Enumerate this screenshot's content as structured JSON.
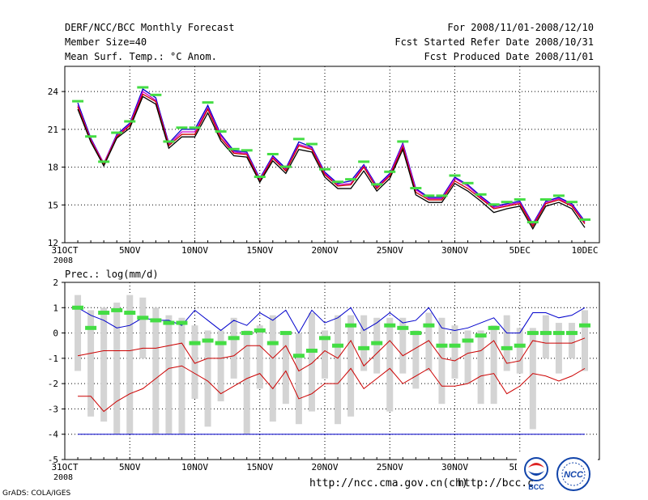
{
  "header": {
    "title": "DERF/NCC/BCC Monthly Forecast",
    "member_size": "Member Size=40",
    "variable1": "Mean Surf. Temp.: °C Anom.",
    "period": "For 2008/11/01-2008/12/10",
    "started": "Fcst Started Refer Date 2008/10/31",
    "produced": "Fcst Produced Date 2008/11/01"
  },
  "footer": {
    "url1": "http://ncc.cma.gov.cn(ch)",
    "url2": "http://bcc.c",
    "grads": "GrADS: COLA/IGES",
    "logo1_text": "BCC",
    "logo2_text": "NCC"
  },
  "colors": {
    "blue": "#0000cc",
    "red": "#cc0000",
    "magenta": "#cc00cc",
    "green": "#44dd44",
    "gray": "#d4d4d4",
    "grid": "#000000"
  },
  "chart_data": [
    {
      "type": "line",
      "title": "Mean Surf. Temp.: °C Anom.",
      "ylim": [
        12,
        26
      ],
      "yticks": [
        12,
        15,
        18,
        21,
        24
      ],
      "xticks": [
        {
          "d": 0,
          "label": "31OCT",
          "sub": "2008"
        },
        {
          "d": 5,
          "label": "5NOV"
        },
        {
          "d": 10,
          "label": "10NOV"
        },
        {
          "d": 15,
          "label": "15NOV"
        },
        {
          "d": 20,
          "label": "20NOV"
        },
        {
          "d": 25,
          "label": "25NOV"
        },
        {
          "d": 30,
          "label": "30NOV"
        },
        {
          "d": 35,
          "label": "5DEC"
        },
        {
          "d": 40,
          "label": "10DEC"
        }
      ],
      "x": [
        1,
        2,
        3,
        4,
        5,
        6,
        7,
        8,
        9,
        10,
        11,
        12,
        13,
        14,
        15,
        16,
        17,
        18,
        19,
        20,
        21,
        22,
        23,
        24,
        25,
        26,
        27,
        28,
        29,
        30,
        31,
        32,
        33,
        34,
        35,
        36,
        37,
        38,
        39,
        40
      ],
      "series": [
        {
          "name": "observed",
          "values": [
            23.2,
            20.4,
            18.4,
            20.7,
            21.6,
            24.3,
            23.7,
            20.0,
            21.1,
            21.1,
            23.1,
            20.8,
            19.4,
            19.3,
            17.2,
            19.0,
            18.0,
            20.2,
            19.8,
            17.8,
            16.8,
            17.0,
            18.4,
            16.6,
            17.6,
            20.0,
            16.3,
            15.7,
            15.7,
            17.3,
            16.7,
            15.8,
            15.0,
            15.2,
            15.4,
            13.6,
            15.4,
            15.7,
            15.2,
            13.8
          ]
        },
        {
          "name": "ensemble-max",
          "values": [
            23.1,
            20.3,
            18.3,
            20.6,
            21.5,
            24.2,
            23.5,
            19.9,
            21.0,
            21.0,
            22.9,
            20.6,
            19.3,
            19.2,
            17.1,
            18.9,
            17.9,
            20.0,
            19.6,
            17.6,
            16.7,
            16.9,
            18.2,
            16.5,
            17.5,
            19.9,
            16.3,
            15.6,
            15.6,
            17.2,
            16.6,
            15.7,
            14.9,
            15.1,
            15.3,
            13.5,
            15.3,
            15.6,
            15.1,
            13.7
          ]
        },
        {
          "name": "ensemble-mean",
          "values": [
            22.9,
            20.2,
            18.3,
            20.5,
            21.4,
            24.0,
            23.3,
            19.8,
            20.8,
            20.8,
            22.7,
            20.5,
            19.2,
            19.1,
            17.0,
            18.8,
            17.8,
            19.8,
            19.5,
            17.5,
            16.6,
            16.7,
            18.1,
            16.4,
            17.4,
            19.8,
            16.2,
            15.5,
            15.5,
            17.1,
            16.5,
            15.6,
            14.8,
            15.0,
            15.2,
            13.4,
            15.2,
            15.5,
            15.0,
            13.6
          ]
        },
        {
          "name": "ensemble-p25",
          "values": [
            22.8,
            20.1,
            18.2,
            20.4,
            21.3,
            23.8,
            23.2,
            19.7,
            20.6,
            20.6,
            22.6,
            20.3,
            19.1,
            19.0,
            16.9,
            18.7,
            17.7,
            19.7,
            19.4,
            17.4,
            16.5,
            16.6,
            18.0,
            16.3,
            17.3,
            19.6,
            16.0,
            15.4,
            15.4,
            16.9,
            16.3,
            15.5,
            14.7,
            14.9,
            15.1,
            13.3,
            15.1,
            15.4,
            14.9,
            13.5
          ]
        },
        {
          "name": "ensemble-min",
          "values": [
            22.6,
            20.0,
            18.1,
            20.3,
            21.1,
            23.6,
            23.0,
            19.5,
            20.4,
            20.4,
            22.3,
            20.1,
            18.9,
            18.8,
            16.8,
            18.5,
            17.5,
            19.4,
            19.2,
            17.2,
            16.3,
            16.3,
            17.7,
            16.1,
            17.1,
            19.4,
            15.8,
            15.2,
            15.2,
            16.7,
            16.1,
            15.3,
            14.4,
            14.7,
            14.9,
            13.1,
            14.9,
            15.2,
            14.7,
            13.2
          ]
        }
      ]
    },
    {
      "type": "bar",
      "title": "Prec.: log(mm/d)",
      "ylim": [
        -5,
        2
      ],
      "yticks": [
        -5,
        -4,
        -3,
        -2,
        -1,
        0,
        1,
        2
      ],
      "x": [
        1,
        2,
        3,
        4,
        5,
        6,
        7,
        8,
        9,
        10,
        11,
        12,
        13,
        14,
        15,
        16,
        17,
        18,
        19,
        20,
        21,
        22,
        23,
        24,
        25,
        26,
        27,
        28,
        29,
        30,
        31,
        32,
        33,
        34,
        35,
        36,
        37,
        38,
        39,
        40
      ],
      "bars_low": [
        -1.5,
        -3.3,
        -3.5,
        -4.0,
        -4.0,
        -1.0,
        -4.0,
        -4.0,
        -4.0,
        -2.6,
        -3.7,
        -2.7,
        -1.8,
        -4.0,
        -2.2,
        -3.5,
        -2.8,
        -3.6,
        -3.1,
        -1.8,
        -3.6,
        -3.3,
        -1.5,
        -1.6,
        -3.1,
        -1.6,
        -2.2,
        -1.5,
        -2.8,
        -1.8,
        -2.0,
        -2.8,
        -2.8,
        -1.5,
        -1.6,
        -3.8,
        -1.0,
        -1.6,
        -1.0,
        -1.5
      ],
      "bars_high": [
        1.5,
        0.9,
        1.0,
        1.2,
        1.5,
        1.4,
        1.0,
        0.7,
        0.6,
        0.3,
        0.1,
        0.1,
        0.6,
        0.1,
        0.3,
        0.7,
        0.0,
        0.0,
        0.8,
        0.1,
        0.7,
        0.7,
        0.7,
        0.6,
        0.6,
        0.6,
        0.1,
        0.8,
        0.6,
        0.3,
        0.1,
        0.1,
        0.3,
        0.7,
        0.2,
        0.2,
        0.7,
        0.4,
        0.4,
        0.9
      ],
      "observed": [
        1.0,
        0.2,
        0.8,
        0.9,
        0.8,
        0.6,
        0.5,
        0.4,
        0.4,
        -0.4,
        -0.3,
        -0.4,
        -0.2,
        0.0,
        0.1,
        -0.4,
        0.0,
        -0.9,
        -0.7,
        -0.2,
        -0.5,
        0.3,
        -0.6,
        -0.4,
        0.3,
        0.2,
        0.0,
        0.3,
        -0.5,
        -0.5,
        -0.3,
        -0.1,
        0.2,
        -0.6,
        -0.5,
        0.0,
        0.0,
        0.0,
        0.0,
        0.3
      ],
      "series": [
        {
          "name": "ensemble-max",
          "color": "blue",
          "values": [
            1.0,
            0.7,
            0.5,
            0.2,
            0.3,
            0.6,
            0.5,
            0.5,
            0.3,
            0.9,
            0.5,
            0.1,
            0.5,
            0.3,
            0.8,
            0.5,
            0.9,
            0.0,
            0.9,
            0.4,
            0.6,
            1.0,
            0.1,
            0.4,
            0.8,
            0.4,
            0.5,
            1.0,
            0.2,
            0.1,
            0.2,
            0.4,
            0.6,
            0.0,
            0.0,
            0.8,
            0.8,
            0.6,
            0.7,
            1.0
          ]
        },
        {
          "name": "ensemble-mean",
          "color": "black",
          "values": [
            0.3,
            -0.1,
            -0.3,
            -0.4,
            -0.3,
            -0.2,
            -0.2,
            -0.1,
            0.2,
            -0.5,
            -0.4,
            -0.3,
            -0.3,
            0.0,
            0.1,
            -0.5,
            0.1,
            -1.0,
            -0.7,
            -0.3,
            -0.5,
            0.1,
            -0.7,
            -0.3,
            0.1,
            -0.4,
            -0.2,
            0.1,
            -0.5,
            -0.6,
            -0.3,
            -0.2,
            0.1,
            -0.6,
            -0.6,
            0.0,
            0.0,
            0.0,
            0.0,
            0.2
          ]
        },
        {
          "name": "ensemble-p25",
          "color": "red",
          "values": [
            -0.9,
            -0.8,
            -0.7,
            -0.7,
            -0.7,
            -0.6,
            -0.6,
            -0.5,
            -0.4,
            -1.2,
            -1.0,
            -1.0,
            -0.9,
            -0.5,
            -0.5,
            -1.0,
            -0.5,
            -1.5,
            -1.2,
            -0.7,
            -1.0,
            -0.3,
            -1.3,
            -0.8,
            -0.3,
            -0.9,
            -0.6,
            -0.3,
            -1.0,
            -1.1,
            -0.8,
            -0.7,
            -0.3,
            -1.2,
            -1.1,
            -0.3,
            -0.4,
            -0.4,
            -0.4,
            -0.2
          ]
        },
        {
          "name": "ensemble-min",
          "color": "red",
          "values": [
            -2.5,
            -2.5,
            -3.1,
            -2.7,
            -2.4,
            -2.2,
            -1.8,
            -1.4,
            -1.3,
            -1.6,
            -1.9,
            -2.4,
            -2.1,
            -1.8,
            -1.6,
            -2.2,
            -1.5,
            -2.6,
            -2.4,
            -2.0,
            -2.0,
            -1.4,
            -2.2,
            -1.8,
            -1.4,
            -2.0,
            -1.7,
            -1.4,
            -2.1,
            -2.1,
            -2.0,
            -1.7,
            -1.6,
            -2.4,
            -2.1,
            -1.6,
            -1.7,
            -1.9,
            -1.7,
            -1.4
          ]
        },
        {
          "name": "lower-bound",
          "color": "blue",
          "values": [
            -4.0,
            -4.0,
            -4.0,
            -4.0,
            -4.0,
            -4.0,
            -4.0,
            -4.0,
            -4.0,
            -4.0,
            -4.0,
            -4.0,
            -4.0,
            -4.0,
            -4.0,
            -4.0,
            -4.0,
            -4.0,
            -4.0,
            -4.0,
            -4.0,
            -4.0,
            -4.0,
            -4.0,
            -4.0,
            -4.0,
            -4.0,
            -4.0,
            -4.0,
            -4.0,
            -4.0,
            -4.0,
            -4.0,
            -4.0,
            -4.0,
            -4.0,
            -4.0,
            -4.0,
            -4.0,
            -4.0
          ]
        }
      ]
    }
  ]
}
